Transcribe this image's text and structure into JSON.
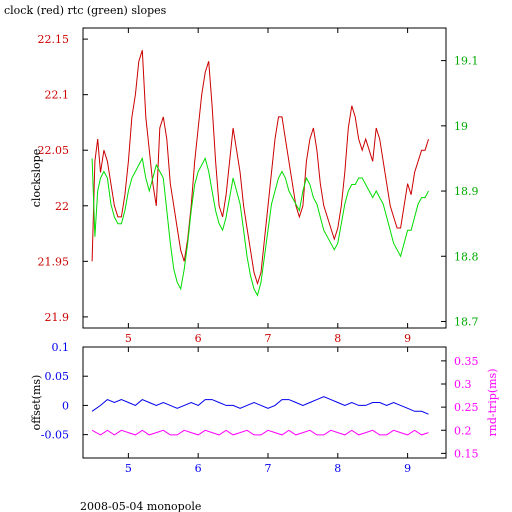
{
  "title": "clock (red) rtc (green) slopes",
  "footer": "2008-05-04 monopole",
  "colors": {
    "red": "#cc0000",
    "green": "#00dd00",
    "blue": "#0000ee",
    "magenta": "#ff00ff",
    "axis": "#000000"
  },
  "chart_data": [
    {
      "type": "line",
      "title": "clock (red) rtc (green) slopes",
      "xlabel": "",
      "ylabel": "clockslope",
      "y2label": "",
      "xlim": [
        4.35,
        9.55
      ],
      "ylim": [
        21.89,
        22.16
      ],
      "y2lim": [
        18.69,
        19.15
      ],
      "xticks": [
        "5",
        "6",
        "7",
        "8",
        "9"
      ],
      "yticks": [
        "21.9",
        "21.95",
        "22",
        "22.05",
        "22.1",
        "22.15"
      ],
      "y2ticks": [
        "18.7",
        "18.8",
        "18.9",
        "19",
        "19.1"
      ],
      "grid": false,
      "series": [
        {
          "axis": "left",
          "color": "#cc0000",
          "x": [
            4.48,
            4.52,
            4.56,
            4.6,
            4.65,
            4.7,
            4.75,
            4.8,
            4.85,
            4.9,
            4.95,
            5.0,
            5.05,
            5.1,
            5.15,
            5.2,
            5.25,
            5.3,
            5.35,
            5.4,
            5.45,
            5.5,
            5.55,
            5.6,
            5.65,
            5.7,
            5.75,
            5.8,
            5.85,
            5.9,
            5.95,
            6.0,
            6.05,
            6.1,
            6.15,
            6.2,
            6.25,
            6.3,
            6.35,
            6.4,
            6.45,
            6.5,
            6.55,
            6.6,
            6.65,
            6.7,
            6.75,
            6.8,
            6.85,
            6.9,
            6.95,
            7.0,
            7.05,
            7.1,
            7.15,
            7.2,
            7.25,
            7.3,
            7.35,
            7.4,
            7.45,
            7.5,
            7.55,
            7.6,
            7.65,
            7.7,
            7.75,
            7.8,
            7.85,
            7.9,
            7.95,
            8.0,
            8.05,
            8.1,
            8.15,
            8.2,
            8.25,
            8.3,
            8.35,
            8.4,
            8.45,
            8.5,
            8.55,
            8.6,
            8.65,
            8.7,
            8.75,
            8.8,
            8.85,
            8.9,
            8.95,
            9.0,
            9.05,
            9.1,
            9.15,
            9.2,
            9.25,
            9.3
          ],
          "y": [
            21.95,
            22.04,
            22.06,
            22.03,
            22.05,
            22.04,
            22.02,
            22.0,
            21.99,
            21.99,
            22.01,
            22.04,
            22.08,
            22.1,
            22.13,
            22.14,
            22.08,
            22.05,
            22.02,
            22.0,
            22.07,
            22.08,
            22.06,
            22.02,
            22.0,
            21.98,
            21.96,
            21.95,
            21.97,
            22.0,
            22.04,
            22.07,
            22.1,
            22.12,
            22.13,
            22.09,
            22.04,
            22.0,
            21.99,
            22.01,
            22.04,
            22.07,
            22.05,
            22.03,
            22.0,
            21.98,
            21.96,
            21.94,
            21.93,
            21.94,
            21.97,
            22.0,
            22.03,
            22.06,
            22.08,
            22.08,
            22.06,
            22.04,
            22.02,
            22.0,
            21.99,
            22.0,
            22.04,
            22.06,
            22.07,
            22.05,
            22.02,
            22.0,
            21.99,
            21.98,
            21.97,
            21.98,
            22.0,
            22.03,
            22.07,
            22.09,
            22.08,
            22.06,
            22.05,
            22.06,
            22.05,
            22.04,
            22.07,
            22.06,
            22.04,
            22.02,
            22.0,
            21.99,
            21.98,
            21.98,
            22.0,
            22.02,
            22.01,
            22.03,
            22.04,
            22.05,
            22.05,
            22.06
          ]
        },
        {
          "axis": "right",
          "color": "#00dd00",
          "x": [
            4.48,
            4.52,
            4.56,
            4.6,
            4.65,
            4.7,
            4.75,
            4.8,
            4.85,
            4.9,
            4.95,
            5.0,
            5.05,
            5.1,
            5.15,
            5.2,
            5.25,
            5.3,
            5.35,
            5.4,
            5.45,
            5.5,
            5.55,
            5.6,
            5.65,
            5.7,
            5.75,
            5.8,
            5.85,
            5.9,
            5.95,
            6.0,
            6.05,
            6.1,
            6.15,
            6.2,
            6.25,
            6.3,
            6.35,
            6.4,
            6.45,
            6.5,
            6.55,
            6.6,
            6.65,
            6.7,
            6.75,
            6.8,
            6.85,
            6.9,
            6.95,
            7.0,
            7.05,
            7.1,
            7.15,
            7.2,
            7.25,
            7.3,
            7.35,
            7.4,
            7.45,
            7.5,
            7.55,
            7.6,
            7.65,
            7.7,
            7.75,
            7.8,
            7.85,
            7.9,
            7.95,
            8.0,
            8.05,
            8.1,
            8.15,
            8.2,
            8.25,
            8.3,
            8.35,
            8.4,
            8.45,
            8.5,
            8.55,
            8.6,
            8.65,
            8.7,
            8.75,
            8.8,
            8.85,
            8.9,
            8.95,
            9.0,
            9.05,
            9.1,
            9.15,
            9.2,
            9.25,
            9.3
          ],
          "y": [
            18.95,
            18.83,
            18.9,
            18.92,
            18.93,
            18.92,
            18.88,
            18.86,
            18.85,
            18.85,
            18.87,
            18.9,
            18.92,
            18.93,
            18.94,
            18.95,
            18.92,
            18.9,
            18.92,
            18.94,
            18.93,
            18.92,
            18.87,
            18.82,
            18.78,
            18.76,
            18.75,
            18.78,
            18.82,
            18.87,
            18.91,
            18.93,
            18.94,
            18.95,
            18.93,
            18.9,
            18.87,
            18.85,
            18.84,
            18.86,
            18.89,
            18.92,
            18.9,
            18.88,
            18.84,
            18.8,
            18.77,
            18.75,
            18.74,
            18.76,
            18.8,
            18.84,
            18.88,
            18.9,
            18.92,
            18.93,
            18.92,
            18.9,
            18.89,
            18.88,
            18.87,
            18.9,
            18.92,
            18.91,
            18.89,
            18.88,
            18.86,
            18.84,
            18.83,
            18.82,
            18.81,
            18.82,
            18.85,
            18.88,
            18.9,
            18.91,
            18.91,
            18.92,
            18.92,
            18.91,
            18.9,
            18.89,
            18.9,
            18.89,
            18.88,
            18.86,
            18.84,
            18.82,
            18.81,
            18.8,
            18.82,
            18.84,
            18.84,
            18.86,
            18.88,
            18.89,
            18.89,
            18.9
          ]
        }
      ]
    },
    {
      "type": "line",
      "xlabel": "",
      "ylabel": "offset(ms)",
      "y2label": "rnd-trip(ms)",
      "xlim": [
        4.35,
        9.55
      ],
      "ylim": [
        -0.09,
        0.1
      ],
      "y2lim": [
        0.14,
        0.38
      ],
      "xticks": [
        "5",
        "6",
        "7",
        "8",
        "9"
      ],
      "yticks": [
        "-0.05",
        "0",
        "0.05",
        "0.1"
      ],
      "y2ticks": [
        "0.15",
        "0.2",
        "0.25",
        "0.3",
        "0.35"
      ],
      "grid": false,
      "series": [
        {
          "axis": "left",
          "color": "#0000ee",
          "x": [
            4.48,
            4.6,
            4.7,
            4.8,
            4.9,
            5.0,
            5.1,
            5.2,
            5.3,
            5.4,
            5.5,
            5.6,
            5.7,
            5.8,
            5.9,
            6.0,
            6.1,
            6.2,
            6.3,
            6.4,
            6.5,
            6.6,
            6.7,
            6.8,
            6.9,
            7.0,
            7.1,
            7.2,
            7.3,
            7.4,
            7.5,
            7.6,
            7.7,
            7.8,
            7.9,
            8.0,
            8.1,
            8.2,
            8.3,
            8.4,
            8.5,
            8.6,
            8.7,
            8.8,
            8.9,
            9.0,
            9.1,
            9.2,
            9.3
          ],
          "y": [
            -0.01,
            0.0,
            0.01,
            0.005,
            0.01,
            0.005,
            0.0,
            0.01,
            0.005,
            0.0,
            0.005,
            0.0,
            -0.005,
            0.0,
            0.005,
            0.0,
            0.01,
            0.01,
            0.005,
            0.0,
            0.0,
            -0.005,
            0.0,
            0.005,
            0.0,
            -0.005,
            0.0,
            0.01,
            0.01,
            0.005,
            0.0,
            0.005,
            0.01,
            0.015,
            0.01,
            0.005,
            0.0,
            0.005,
            0.0,
            0.0,
            0.005,
            0.005,
            0.0,
            0.005,
            0.0,
            -0.005,
            -0.01,
            -0.01,
            -0.015
          ]
        },
        {
          "axis": "right",
          "color": "#ff00ff",
          "x": [
            4.48,
            4.6,
            4.7,
            4.8,
            4.9,
            5.0,
            5.1,
            5.2,
            5.3,
            5.4,
            5.5,
            5.6,
            5.7,
            5.8,
            5.9,
            6.0,
            6.1,
            6.2,
            6.3,
            6.4,
            6.5,
            6.6,
            6.7,
            6.8,
            6.9,
            7.0,
            7.1,
            7.2,
            7.3,
            7.4,
            7.5,
            7.6,
            7.7,
            7.8,
            7.9,
            8.0,
            8.1,
            8.2,
            8.3,
            8.4,
            8.5,
            8.6,
            8.7,
            8.8,
            8.9,
            9.0,
            9.1,
            9.2,
            9.3
          ],
          "y": [
            0.2,
            0.19,
            0.2,
            0.19,
            0.2,
            0.195,
            0.19,
            0.2,
            0.19,
            0.195,
            0.2,
            0.19,
            0.19,
            0.2,
            0.195,
            0.19,
            0.2,
            0.195,
            0.19,
            0.2,
            0.19,
            0.195,
            0.2,
            0.19,
            0.19,
            0.2,
            0.195,
            0.19,
            0.2,
            0.19,
            0.195,
            0.2,
            0.19,
            0.19,
            0.2,
            0.195,
            0.19,
            0.2,
            0.19,
            0.195,
            0.2,
            0.19,
            0.19,
            0.2,
            0.195,
            0.19,
            0.2,
            0.19,
            0.195
          ]
        }
      ]
    }
  ]
}
